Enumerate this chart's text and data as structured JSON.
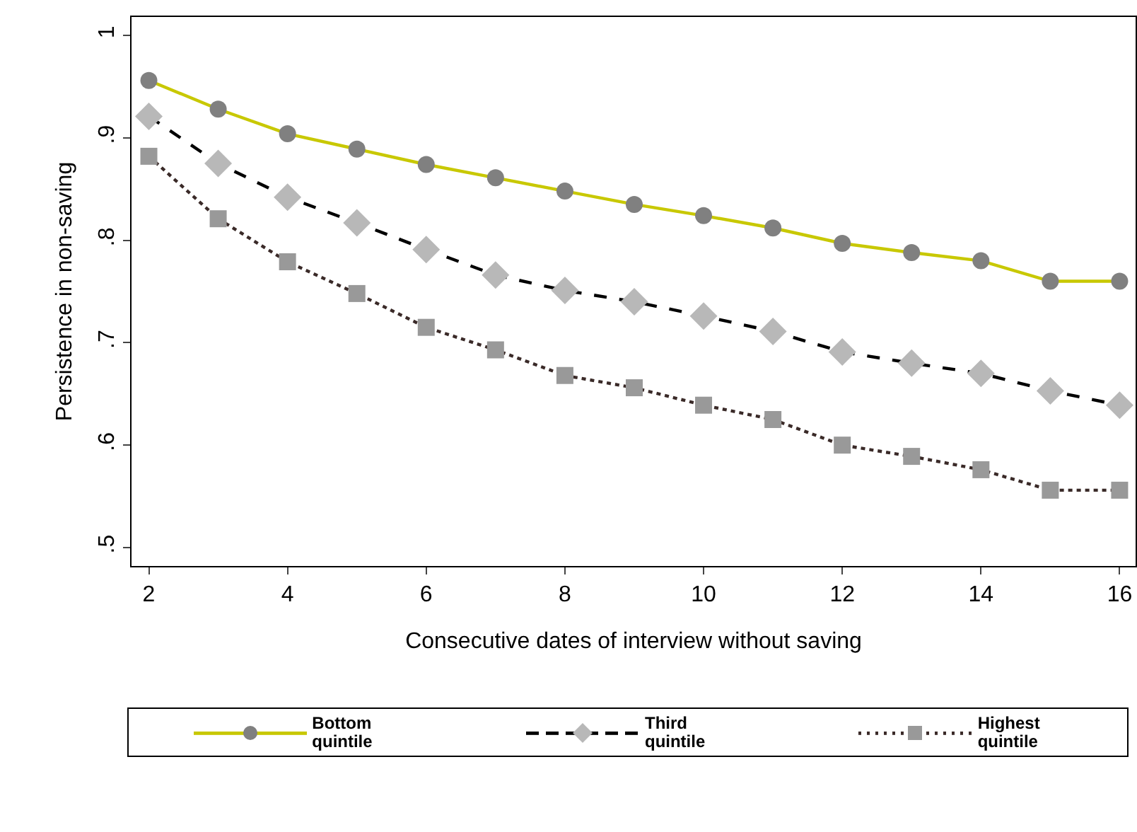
{
  "chart_data": {
    "type": "line",
    "xlabel": "Consecutive dates of interview without saving",
    "ylabel": "Persistence in non-saving",
    "x": [
      2,
      3,
      4,
      5,
      6,
      7,
      8,
      9,
      10,
      11,
      12,
      13,
      14,
      15,
      16
    ],
    "series": [
      {
        "name": "Bottom quintile",
        "color": "#c8c800",
        "colors": [
          "#808080",
          "#808080",
          "#808080",
          "#808080",
          "#808080",
          "#808080",
          "#808080",
          "#808080",
          "#808080",
          "#808080",
          "#808080",
          "#808080",
          "#808080",
          "#808080",
          "#808080"
        ],
        "marker": "circle",
        "line_style": "solid",
        "values": [
          0.956,
          0.928,
          0.904,
          0.889,
          0.874,
          0.861,
          0.848,
          0.835,
          0.824,
          0.812,
          0.797,
          0.788,
          0.78,
          0.76,
          0.76
        ]
      },
      {
        "name": "Third quintile",
        "color": "#000000",
        "colors": [
          "#b8b8b8",
          "#b8b8b8",
          "#b8b8b8",
          "#b8b8b8",
          "#b8b8b8",
          "#b8b8b8",
          "#b8b8b8",
          "#b8b8b8",
          "#b8b8b8",
          "#b8b8b8",
          "#b8b8b8",
          "#b8b8b8",
          "#b8b8b8",
          "#b8b8b8",
          "#b8b8b8"
        ],
        "marker": "diamond",
        "line_style": "dashed",
        "values": [
          0.921,
          0.875,
          0.842,
          0.817,
          0.791,
          0.766,
          0.751,
          0.74,
          0.726,
          0.711,
          0.691,
          0.68,
          0.67,
          0.653,
          0.639
        ]
      },
      {
        "name": "Highest quintile",
        "color": "#3a2a28",
        "colors": [
          "#999999",
          "#999999",
          "#999999",
          "#999999",
          "#999999",
          "#999999",
          "#999999",
          "#999999",
          "#999999",
          "#999999",
          "#999999",
          "#999999",
          "#999999",
          "#999999",
          "#999999"
        ],
        "marker": "square",
        "line_style": "dotted",
        "values": [
          0.882,
          0.821,
          0.779,
          0.748,
          0.715,
          0.693,
          0.668,
          0.656,
          0.639,
          0.625,
          0.6,
          0.589,
          0.576,
          0.556,
          0.556
        ]
      }
    ],
    "xlim": [
      1.75,
      16.23
    ],
    "xticks": [
      2,
      4,
      6,
      8,
      10,
      12,
      14,
      16
    ],
    "ylim": [
      0.482,
      1.018
    ],
    "yticks": [
      {
        "value": 0.5,
        "label": ".5"
      },
      {
        "value": 0.6,
        "label": ".6"
      },
      {
        "value": 0.7,
        "label": ".7"
      },
      {
        "value": 0.8,
        "label": ".8"
      },
      {
        "value": 0.9,
        "label": ".9"
      },
      {
        "value": 1,
        "label": "1"
      }
    ],
    "grid": false,
    "legend": "bottom"
  }
}
